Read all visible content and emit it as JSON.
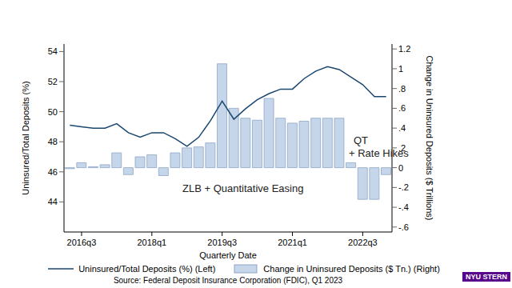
{
  "chart_data": {
    "type": "combo",
    "x_label": "Quarterly Date",
    "y_label": "Uninsured/Total Deposits (%)",
    "y2_label": "Change in Uninsured Deposits ($ Trillions)",
    "source": "Source: Federal Deposit Insurance Corporation (FDIC), Q1 2023",
    "logo": "NYU STERN",
    "annotations": [
      "QT",
      "+ Rate Hikes",
      "ZLB + Quantitative Easing"
    ],
    "categories": [
      null,
      "2016q3",
      null,
      null,
      null,
      null,
      null,
      "2018q1",
      null,
      null,
      null,
      null,
      null,
      "2019q3",
      null,
      null,
      null,
      null,
      null,
      "2021q1",
      null,
      null,
      null,
      null,
      null,
      "2022q3",
      null,
      null
    ],
    "series": [
      {
        "name": "Uninsured/Total Deposits (%) (Left)",
        "type": "line",
        "color": "#1a476f",
        "values": [
          49.1,
          49.0,
          48.9,
          48.9,
          49.2,
          48.6,
          48.3,
          48.6,
          48.6,
          48.2,
          47.7,
          48.3,
          49.4,
          50.7,
          49.5,
          50.2,
          50.8,
          51.2,
          51.5,
          51.5,
          52.2,
          52.7,
          53.0,
          52.8,
          52.3,
          51.8,
          51.0,
          51.0
        ]
      },
      {
        "name": "Change in Uninsured Deposits ($ Tn.) (Right)",
        "type": "bar",
        "color": "#c6d6ea",
        "axis": "y2",
        "values": [
          -0.01,
          0.05,
          0.01,
          0.03,
          0.15,
          -0.07,
          0.11,
          0.13,
          -0.08,
          0.15,
          0.2,
          0.21,
          0.25,
          1.05,
          0.6,
          0.5,
          0.48,
          0.7,
          0.5,
          0.45,
          0.47,
          0.5,
          0.5,
          0.5,
          0.05,
          -0.32,
          -0.32,
          -0.07
        ]
      }
    ],
    "ylim": [
      42,
      54.5
    ],
    "yticks": [
      44,
      46,
      48,
      50,
      52,
      54
    ],
    "y2lim": [
      -0.65,
      1.25
    ],
    "y2ticks": [
      {
        "value": -0.6,
        "label": "-.6"
      },
      {
        "value": -0.4,
        "label": "-.4"
      },
      {
        "value": -0.2,
        "label": "-.2"
      },
      0,
      {
        "value": 0.2,
        "label": ".2"
      },
      {
        "value": 0.4,
        "label": ".4"
      },
      {
        "value": 0.6,
        "label": ".6"
      },
      {
        "value": 0.8,
        "label": ".8"
      },
      1,
      1.2
    ],
    "grid": false,
    "legend": "bottom"
  }
}
